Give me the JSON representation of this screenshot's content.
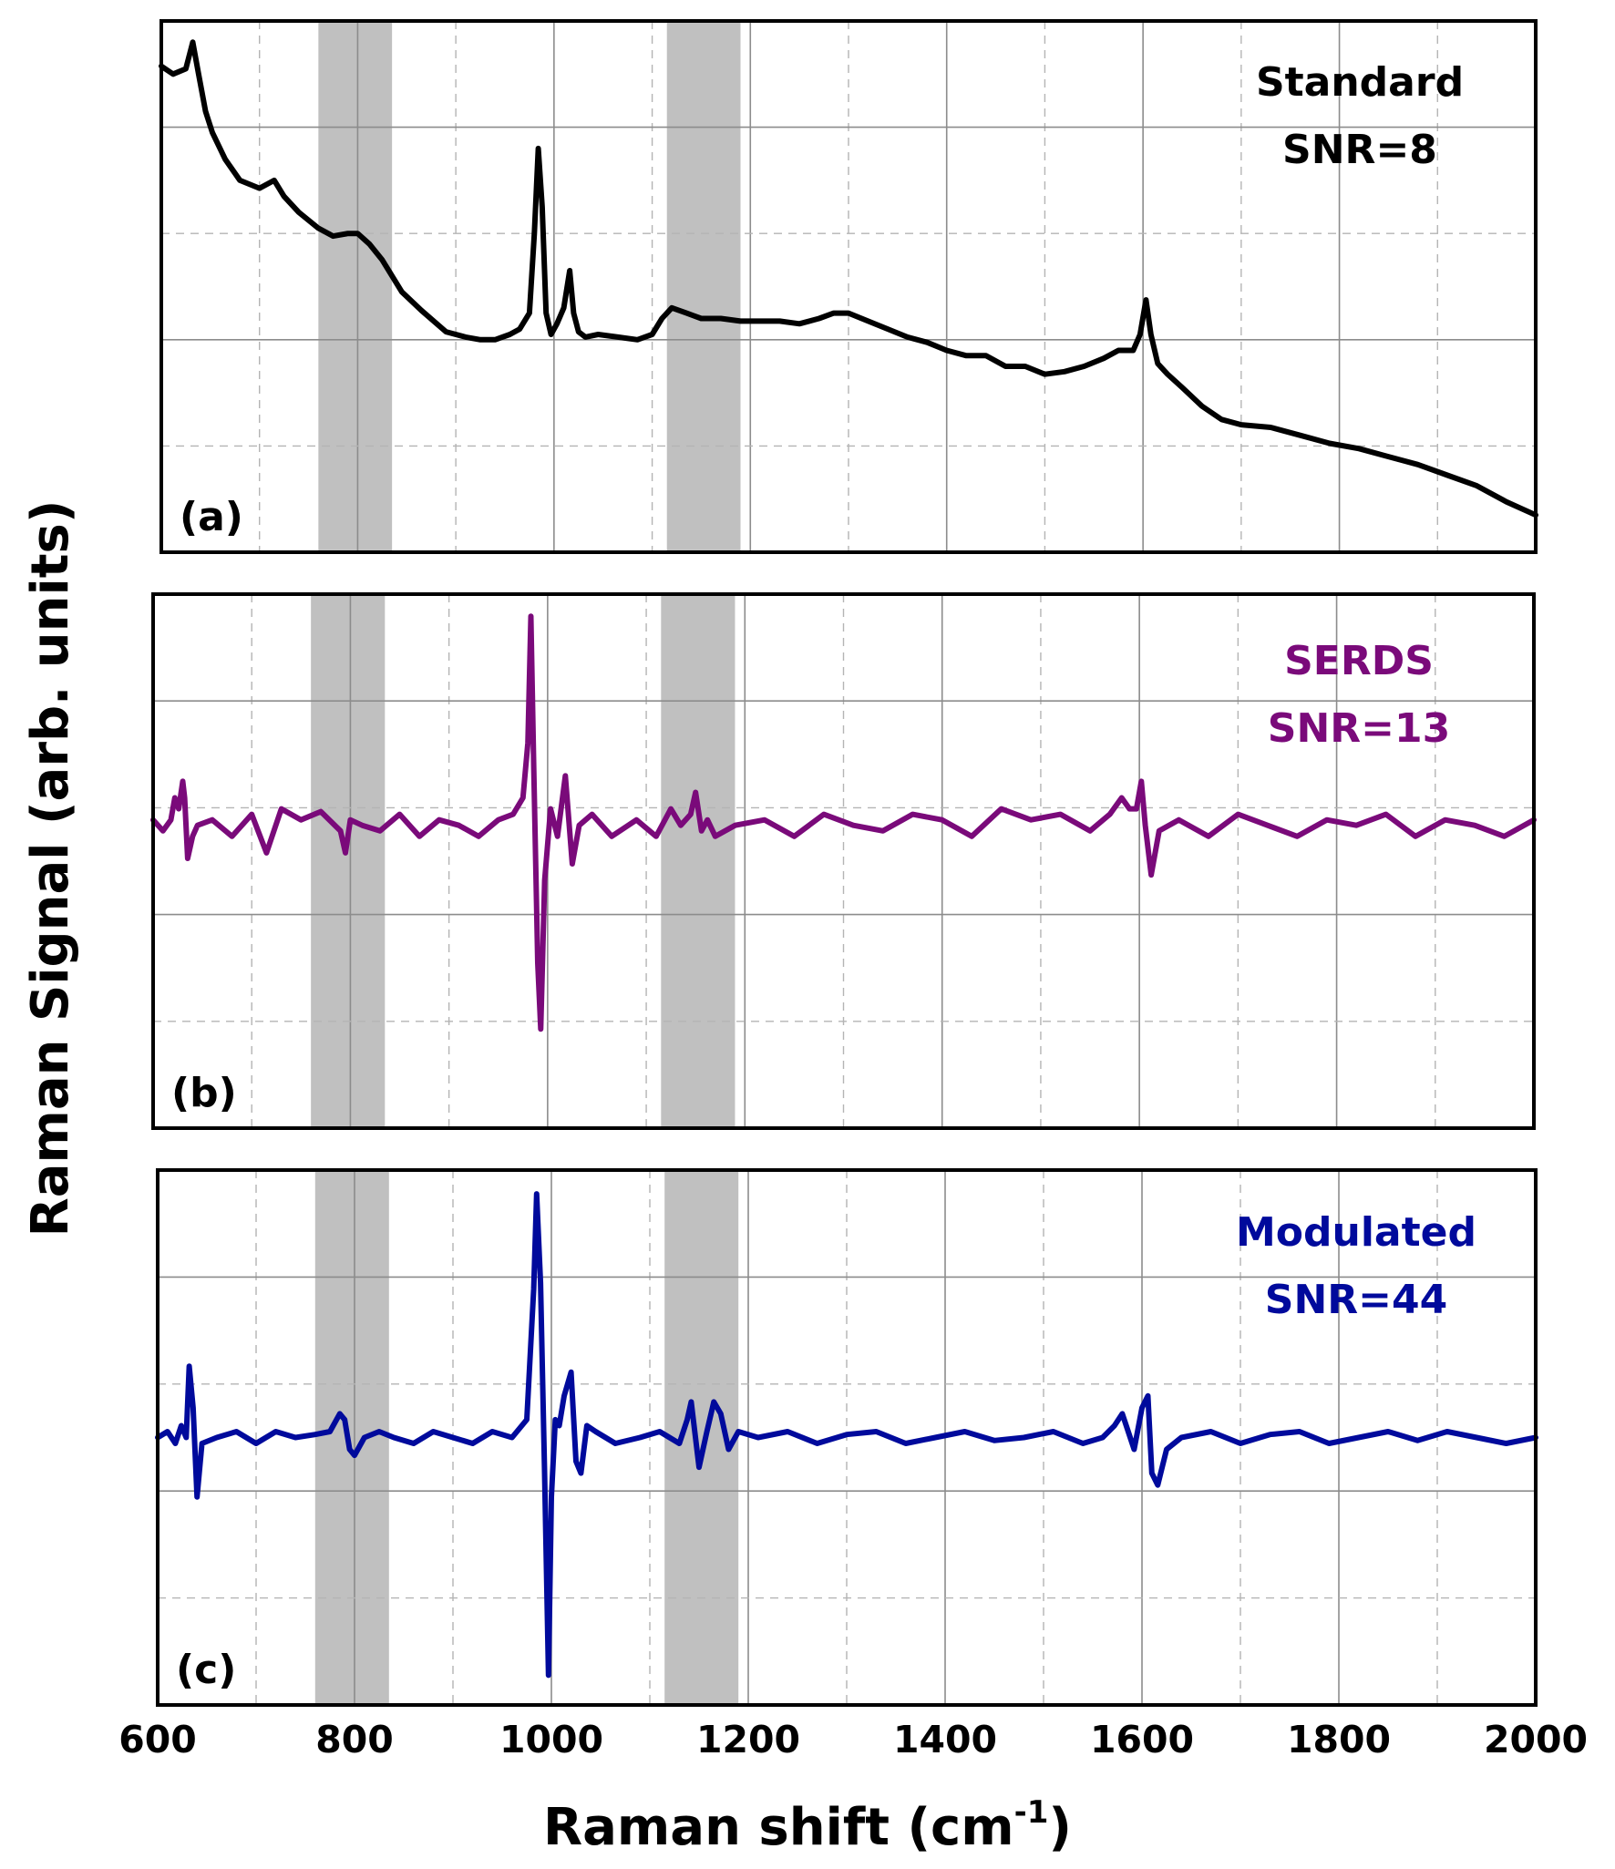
{
  "chart_data": {
    "type": "line",
    "xlabel": "Raman shift (cm",
    "xlabel_superscript": "-1",
    "xlabel_suffix": ")",
    "ylabel": "Raman Signal (arb. units)",
    "xlim": [
      600,
      2000
    ],
    "xticks": [
      600,
      800,
      1000,
      1200,
      1400,
      1600,
      1800,
      2000
    ],
    "xtick_labels": [
      "600",
      "800",
      "1000",
      "1200",
      "1400",
      "1600",
      "1800",
      "2000"
    ],
    "grid": true,
    "shaded_regions": [
      [
        760,
        835
      ],
      [
        1115,
        1190
      ]
    ],
    "panels": [
      {
        "label": "(a)",
        "annotation": [
          "Standard",
          "SNR=8"
        ],
        "color": "#000000",
        "ylim": [
          0,
          10
        ],
        "series": {
          "name": "Standard",
          "x": [
            600,
            612,
            625,
            632,
            638,
            645,
            652,
            665,
            680,
            700,
            715,
            725,
            740,
            760,
            775,
            790,
            800,
            812,
            825,
            845,
            865,
            890,
            910,
            925,
            940,
            955,
            965,
            975,
            980,
            984,
            988,
            992,
            997,
            1003,
            1010,
            1016,
            1020,
            1025,
            1032,
            1045,
            1065,
            1085,
            1100,
            1110,
            1120,
            1135,
            1150,
            1170,
            1190,
            1210,
            1230,
            1250,
            1270,
            1285,
            1300,
            1320,
            1340,
            1360,
            1380,
            1400,
            1420,
            1440,
            1460,
            1480,
            1500,
            1520,
            1540,
            1560,
            1575,
            1590,
            1597,
            1603,
            1608,
            1615,
            1625,
            1640,
            1660,
            1680,
            1700,
            1730,
            1760,
            1790,
            1820,
            1850,
            1880,
            1910,
            1940,
            1970,
            2000
          ],
          "y": [
            9.15,
            9.0,
            9.1,
            9.6,
            9.0,
            8.3,
            7.9,
            7.4,
            7.0,
            6.85,
            7.0,
            6.7,
            6.4,
            6.1,
            5.95,
            6.0,
            6.0,
            5.8,
            5.5,
            4.9,
            4.55,
            4.15,
            4.05,
            4.0,
            4.0,
            4.1,
            4.2,
            4.5,
            6.0,
            7.6,
            6.5,
            4.5,
            4.1,
            4.3,
            4.6,
            5.3,
            4.5,
            4.15,
            4.05,
            4.1,
            4.05,
            4.0,
            4.1,
            4.4,
            4.6,
            4.5,
            4.4,
            4.4,
            4.35,
            4.35,
            4.35,
            4.3,
            4.4,
            4.5,
            4.5,
            4.35,
            4.2,
            4.05,
            3.95,
            3.8,
            3.7,
            3.7,
            3.5,
            3.5,
            3.35,
            3.4,
            3.5,
            3.65,
            3.8,
            3.8,
            4.1,
            4.75,
            4.1,
            3.55,
            3.35,
            3.1,
            2.75,
            2.5,
            2.4,
            2.35,
            2.2,
            2.05,
            1.95,
            1.8,
            1.65,
            1.45,
            1.25,
            0.95,
            0.7
          ]
        }
      },
      {
        "label": "(b)",
        "annotation": [
          "SERDS",
          "SNR=13"
        ],
        "color": "#7a0a7a",
        "ylim": [
          -5.5,
          4.2
        ],
        "series": {
          "name": "SERDS",
          "x": [
            600,
            610,
            618,
            622,
            626,
            630,
            632,
            635,
            640,
            645,
            660,
            680,
            700,
            715,
            730,
            750,
            770,
            790,
            795,
            800,
            812,
            830,
            850,
            870,
            890,
            910,
            930,
            950,
            965,
            975,
            980,
            983,
            986,
            990,
            993,
            997,
            1003,
            1010,
            1018,
            1025,
            1032,
            1045,
            1065,
            1090,
            1110,
            1125,
            1135,
            1145,
            1150,
            1156,
            1162,
            1170,
            1190,
            1220,
            1250,
            1280,
            1310,
            1340,
            1370,
            1400,
            1430,
            1460,
            1490,
            1520,
            1550,
            1570,
            1582,
            1590,
            1597,
            1602,
            1606,
            1612,
            1620,
            1640,
            1670,
            1700,
            1730,
            1760,
            1790,
            1820,
            1850,
            1880,
            1910,
            1940,
            1970,
            2000
          ],
          "y": [
            0.1,
            -0.1,
            0.1,
            0.5,
            0.3,
            0.8,
            0.5,
            -0.6,
            -0.2,
            0.0,
            0.1,
            -0.2,
            0.2,
            -0.5,
            0.3,
            0.1,
            0.25,
            -0.1,
            -0.5,
            0.1,
            0.0,
            -0.1,
            0.2,
            -0.2,
            0.1,
            0.0,
            -0.2,
            0.1,
            0.2,
            0.5,
            1.5,
            3.8,
            1.0,
            -2.5,
            -3.7,
            -1.0,
            0.3,
            -0.2,
            0.9,
            -0.7,
            0.0,
            0.2,
            -0.2,
            0.1,
            -0.2,
            0.3,
            0.0,
            0.2,
            0.6,
            -0.1,
            0.1,
            -0.2,
            0.0,
            0.1,
            -0.2,
            0.2,
            0.0,
            -0.1,
            0.2,
            0.1,
            -0.2,
            0.3,
            0.1,
            0.2,
            -0.1,
            0.2,
            0.5,
            0.3,
            0.3,
            0.8,
            0.0,
            -0.9,
            -0.1,
            0.1,
            -0.2,
            0.2,
            0.0,
            -0.2,
            0.1,
            0.0,
            0.2,
            -0.2,
            0.1,
            0.0,
            -0.2,
            0.1
          ]
        }
      },
      {
        "label": "(c)",
        "annotation": [
          "Modulated",
          "SNR=44"
        ],
        "color": "#000a9c",
        "ylim": [
          -4.5,
          4.5
        ],
        "series": {
          "name": "Modulated",
          "x": [
            600,
            610,
            618,
            624,
            629,
            632,
            636,
            640,
            645,
            660,
            680,
            700,
            720,
            740,
            760,
            775,
            785,
            790,
            795,
            800,
            810,
            825,
            840,
            860,
            880,
            900,
            920,
            940,
            960,
            975,
            982,
            985,
            989,
            993,
            997,
            1000,
            1004,
            1008,
            1013,
            1020,
            1025,
            1030,
            1036,
            1045,
            1065,
            1090,
            1110,
            1130,
            1138,
            1142,
            1150,
            1158,
            1165,
            1172,
            1180,
            1190,
            1210,
            1240,
            1270,
            1300,
            1330,
            1360,
            1390,
            1420,
            1450,
            1480,
            1510,
            1540,
            1560,
            1572,
            1580,
            1586,
            1592,
            1600,
            1606,
            1610,
            1616,
            1625,
            1640,
            1670,
            1700,
            1730,
            1760,
            1790,
            1820,
            1850,
            1880,
            1910,
            1940,
            1970,
            2000
          ],
          "y": [
            0.0,
            0.1,
            -0.1,
            0.2,
            0.0,
            1.2,
            0.5,
            -1.0,
            -0.1,
            0.0,
            0.1,
            -0.1,
            0.1,
            0.0,
            0.05,
            0.1,
            0.4,
            0.3,
            -0.2,
            -0.3,
            0.0,
            0.1,
            0.0,
            -0.1,
            0.1,
            0.0,
            -0.1,
            0.1,
            0.0,
            0.3,
            2.5,
            4.1,
            2.6,
            -0.5,
            -4.0,
            -1.0,
            0.3,
            0.2,
            0.7,
            1.1,
            -0.4,
            -0.6,
            0.2,
            0.1,
            -0.1,
            0.0,
            0.1,
            -0.1,
            0.3,
            0.6,
            -0.5,
            0.1,
            0.6,
            0.4,
            -0.2,
            0.1,
            0.0,
            0.1,
            -0.1,
            0.05,
            0.1,
            -0.1,
            0.0,
            0.1,
            -0.05,
            0.0,
            0.1,
            -0.1,
            0.0,
            0.2,
            0.4,
            0.1,
            -0.2,
            0.5,
            0.7,
            -0.6,
            -0.8,
            -0.2,
            0.0,
            0.1,
            -0.1,
            0.05,
            0.1,
            -0.1,
            0.0,
            0.1,
            -0.05,
            0.1,
            0.0,
            -0.1,
            0.0
          ]
        }
      }
    ]
  }
}
